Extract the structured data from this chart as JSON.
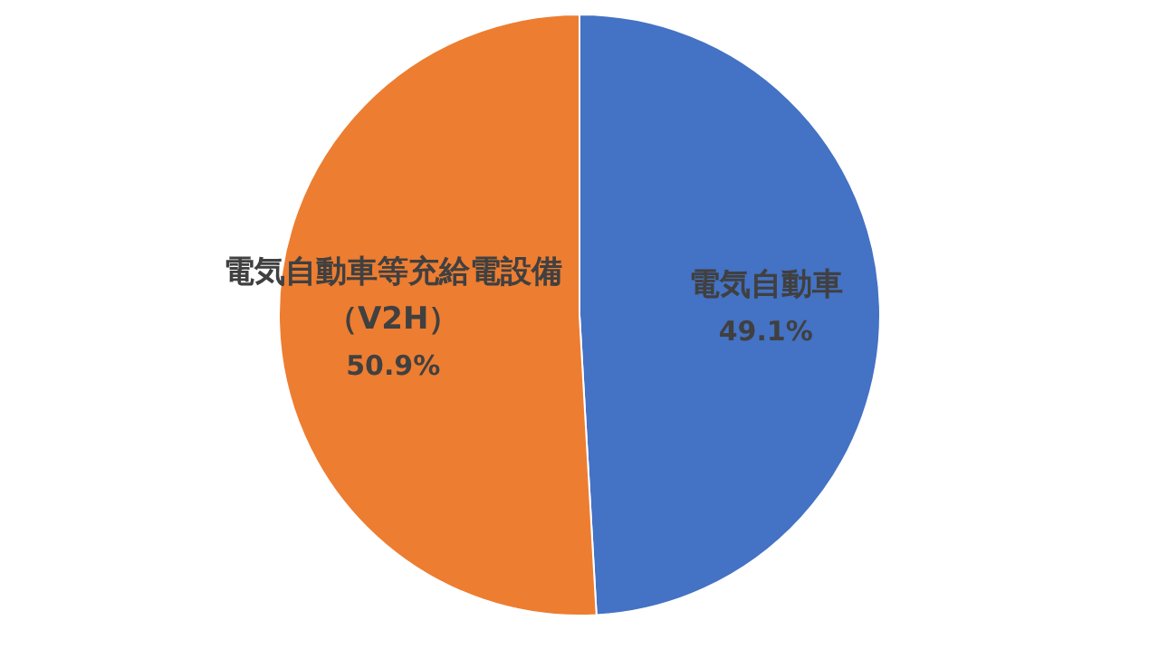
{
  "chart_data": {
    "type": "pie",
    "categories": [
      "電気自動車",
      "電気自動車等充給電設備（V2H）"
    ],
    "values": [
      49.1,
      50.9
    ],
    "colors": [
      "#4472c4",
      "#ed7d31"
    ],
    "value_labels": [
      "49.1%",
      "50.9%"
    ]
  }
}
